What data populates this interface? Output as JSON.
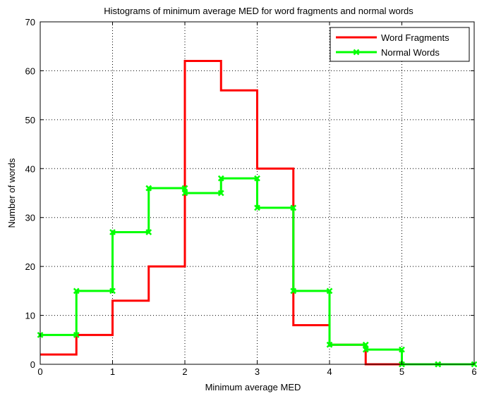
{
  "chart_data": {
    "type": "line",
    "style": "step",
    "title": "Histograms of minimum average MED for word fragments and normal words",
    "xlabel": "Minimum average MED",
    "ylabel": "Number of words",
    "xlim": [
      0,
      6
    ],
    "ylim": [
      0,
      70
    ],
    "xticks": [
      0,
      1,
      2,
      3,
      4,
      5,
      6
    ],
    "yticks": [
      0,
      10,
      20,
      30,
      40,
      50,
      60,
      70
    ],
    "grid": true,
    "legend_position": "top-right",
    "bin_edges": [
      0,
      0.5,
      1,
      1.5,
      2,
      2.5,
      3,
      3.5,
      4,
      4.5,
      5,
      5.5,
      6
    ],
    "series": [
      {
        "name": "Word Fragments",
        "color": "#ff0000",
        "marker": "none",
        "values": [
          2,
          6,
          13,
          20,
          62,
          56,
          40,
          8,
          4,
          0,
          0,
          0
        ]
      },
      {
        "name": "Normal Words",
        "color": "#00ff00",
        "marker": "x",
        "values": [
          6,
          15,
          27,
          36,
          35,
          38,
          32,
          15,
          4,
          3,
          0,
          0
        ]
      }
    ]
  }
}
